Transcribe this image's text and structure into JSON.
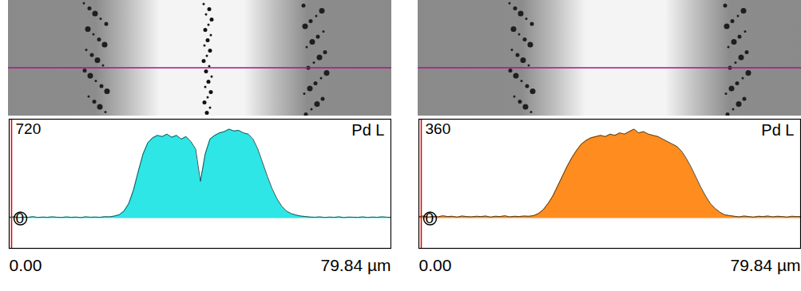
{
  "chart_data": [
    {
      "type": "area",
      "color": "#2ee6e6",
      "annotations": [
        "Pd L"
      ],
      "x": [
        0,
        1,
        2,
        3,
        4,
        5,
        6,
        7,
        8,
        9,
        10,
        11,
        12,
        13,
        14,
        15,
        16,
        17,
        18,
        19,
        20,
        21,
        22,
        23,
        24,
        25,
        26,
        27,
        28,
        29,
        30,
        31,
        32,
        33,
        34,
        35,
        36,
        37,
        38,
        39,
        40,
        41,
        42,
        43,
        44,
        45,
        46,
        47,
        48,
        49,
        50,
        51,
        52,
        53,
        54,
        55,
        56,
        57,
        58,
        59,
        60,
        61,
        62,
        63,
        64,
        65,
        66,
        67,
        68,
        69,
        70,
        71,
        72,
        73,
        74,
        75,
        76,
        77,
        78,
        79,
        79.84
      ],
      "values": [
        10,
        14,
        8,
        12,
        10,
        15,
        9,
        12,
        10,
        14,
        11,
        9,
        13,
        10,
        12,
        8,
        14,
        11,
        12,
        10,
        15,
        14,
        20,
        30,
        60,
        120,
        230,
        380,
        520,
        610,
        650,
        670,
        660,
        680,
        655,
        670,
        640,
        660,
        620,
        560,
        300,
        520,
        640,
        670,
        690,
        700,
        720,
        705,
        710,
        690,
        680,
        640,
        560,
        450,
        340,
        240,
        160,
        100,
        60,
        40,
        28,
        20,
        16,
        12,
        11,
        13,
        9,
        12,
        10,
        14,
        8,
        12,
        11,
        10,
        13,
        9,
        12,
        10,
        14,
        11,
        10
      ],
      "xlim": [
        0,
        79.84
      ],
      "xticks": [
        {
          "value": 0,
          "label": "0.00"
        },
        {
          "value": 79.84,
          "label": "79.84 µm"
        }
      ],
      "ylim": [
        -240,
        800
      ],
      "yticks": [
        0,
        720
      ]
    },
    {
      "type": "area",
      "color": "#ff8c1e",
      "annotations": [
        "Pd L"
      ],
      "x": [
        0,
        1,
        2,
        3,
        4,
        5,
        6,
        7,
        8,
        9,
        10,
        11,
        12,
        13,
        14,
        15,
        16,
        17,
        18,
        19,
        20,
        21,
        22,
        23,
        24,
        25,
        26,
        27,
        28,
        29,
        30,
        31,
        32,
        33,
        34,
        35,
        36,
        37,
        38,
        39,
        40,
        41,
        42,
        43,
        44,
        45,
        46,
        47,
        48,
        49,
        50,
        51,
        52,
        53,
        54,
        55,
        56,
        57,
        58,
        59,
        60,
        61,
        62,
        63,
        64,
        65,
        66,
        67,
        68,
        69,
        70,
        71,
        72,
        73,
        74,
        75,
        76,
        77,
        78,
        79,
        79.84
      ],
      "values": [
        8,
        10,
        6,
        9,
        7,
        11,
        8,
        9,
        6,
        10,
        8,
        7,
        9,
        8,
        10,
        6,
        9,
        8,
        11,
        7,
        9,
        8,
        10,
        9,
        12,
        20,
        35,
        60,
        90,
        130,
        170,
        210,
        245,
        275,
        300,
        315,
        325,
        330,
        335,
        330,
        340,
        335,
        345,
        340,
        350,
        360,
        345,
        350,
        340,
        335,
        330,
        320,
        310,
        300,
        290,
        270,
        240,
        205,
        165,
        125,
        90,
        60,
        40,
        25,
        15,
        12,
        9,
        7,
        10,
        8,
        6,
        9,
        8,
        10,
        7,
        9,
        8,
        6,
        9,
        8,
        8
      ],
      "xlim": [
        0,
        79.84
      ],
      "xticks": [
        {
          "value": 0,
          "label": "0.00"
        },
        {
          "value": 79.84,
          "label": "79.84 µm"
        }
      ],
      "ylim": [
        -120,
        400
      ],
      "yticks": [
        0,
        360
      ]
    }
  ]
}
